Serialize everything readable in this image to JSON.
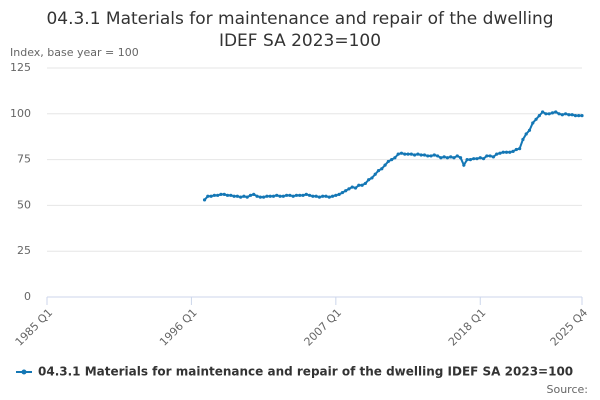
{
  "chart_data": {
    "type": "line",
    "title_lines": [
      "04.3.1 Materials for maintenance and repair of the dwelling",
      "IDEF SA 2023=100"
    ],
    "y_label": "Index, base year = 100",
    "source": "Source:",
    "categories": [
      "1985 Q1",
      null,
      null,
      null,
      null,
      null,
      null,
      null,
      null,
      null,
      null,
      null,
      null,
      null,
      null,
      null,
      null,
      null,
      null,
      null,
      null,
      null,
      null,
      null,
      null,
      null,
      null,
      null,
      null,
      null,
      null,
      null,
      null,
      null,
      null,
      null,
      null,
      null,
      null,
      null,
      null,
      null,
      null,
      null,
      "1996 Q1",
      null,
      null,
      null,
      null,
      null,
      null,
      null,
      null,
      null,
      null,
      null,
      null,
      null,
      null,
      null,
      null,
      null,
      null,
      null,
      null,
      null,
      null,
      null,
      null,
      null,
      null,
      null,
      null,
      null,
      null,
      null,
      null,
      null,
      null,
      null,
      null,
      null,
      null,
      null,
      null,
      null,
      null,
      null,
      "2007 Q1",
      null,
      null,
      null,
      null,
      null,
      null,
      null,
      null,
      null,
      null,
      null,
      null,
      null,
      null,
      null,
      null,
      null,
      null,
      null,
      null,
      null,
      null,
      null,
      null,
      null,
      null,
      null,
      null,
      null,
      null,
      null,
      null,
      null,
      null,
      null,
      null,
      null,
      null,
      null,
      null,
      null,
      null,
      null,
      "2018 Q1",
      null,
      null,
      null,
      null,
      null,
      null,
      null,
      null,
      null,
      null,
      null,
      null,
      null,
      null,
      null,
      null,
      null,
      null,
      null,
      null,
      null,
      null,
      null,
      null,
      null,
      null,
      null,
      null,
      null,
      null,
      "2025 Q4"
    ],
    "series": [
      {
        "name": "04.3.1 Materials for maintenance and repair of the dwelling IDEF SA 2023=100",
        "color": "#1477b5",
        "values": [
          null,
          null,
          null,
          null,
          null,
          null,
          null,
          null,
          null,
          null,
          null,
          null,
          null,
          null,
          null,
          null,
          null,
          null,
          null,
          null,
          null,
          null,
          null,
          null,
          null,
          null,
          null,
          null,
          null,
          null,
          null,
          null,
          null,
          null,
          null,
          null,
          null,
          null,
          null,
          null,
          null,
          null,
          null,
          null,
          null,
          null,
          null,
          null,
          53,
          55,
          55,
          55.5,
          55.5,
          56,
          56,
          55.5,
          55.5,
          55,
          55,
          54.5,
          55,
          54.5,
          55.5,
          56,
          55,
          54.5,
          54.5,
          55,
          55,
          55,
          55.5,
          55,
          55,
          55.5,
          55.5,
          55,
          55.5,
          55.5,
          55.5,
          56,
          55.5,
          55,
          55,
          54.5,
          55,
          55,
          54.5,
          55,
          55.5,
          56,
          57,
          58,
          59,
          60,
          59.5,
          61,
          61,
          62,
          64,
          65,
          67,
          69,
          70,
          72,
          74,
          75,
          76,
          78,
          78.5,
          78,
          78,
          78,
          77.5,
          78,
          77.5,
          77.5,
          77,
          77,
          77.5,
          77,
          76,
          76.5,
          76,
          76.5,
          76,
          77,
          76,
          72,
          75,
          75,
          75.5,
          75.5,
          76,
          75.5,
          77,
          77,
          76.5,
          78,
          78.5,
          79,
          79,
          79,
          79.5,
          80.5,
          81,
          86,
          89,
          91,
          95,
          97,
          99,
          101,
          100,
          100,
          100.5,
          101,
          100,
          99.5,
          100,
          99.5,
          99.5,
          99,
          99,
          99
        ]
      }
    ],
    "ylim": [
      0,
      125
    ],
    "yticks": [
      0,
      25,
      50,
      75,
      100,
      125
    ],
    "grid": true
  }
}
